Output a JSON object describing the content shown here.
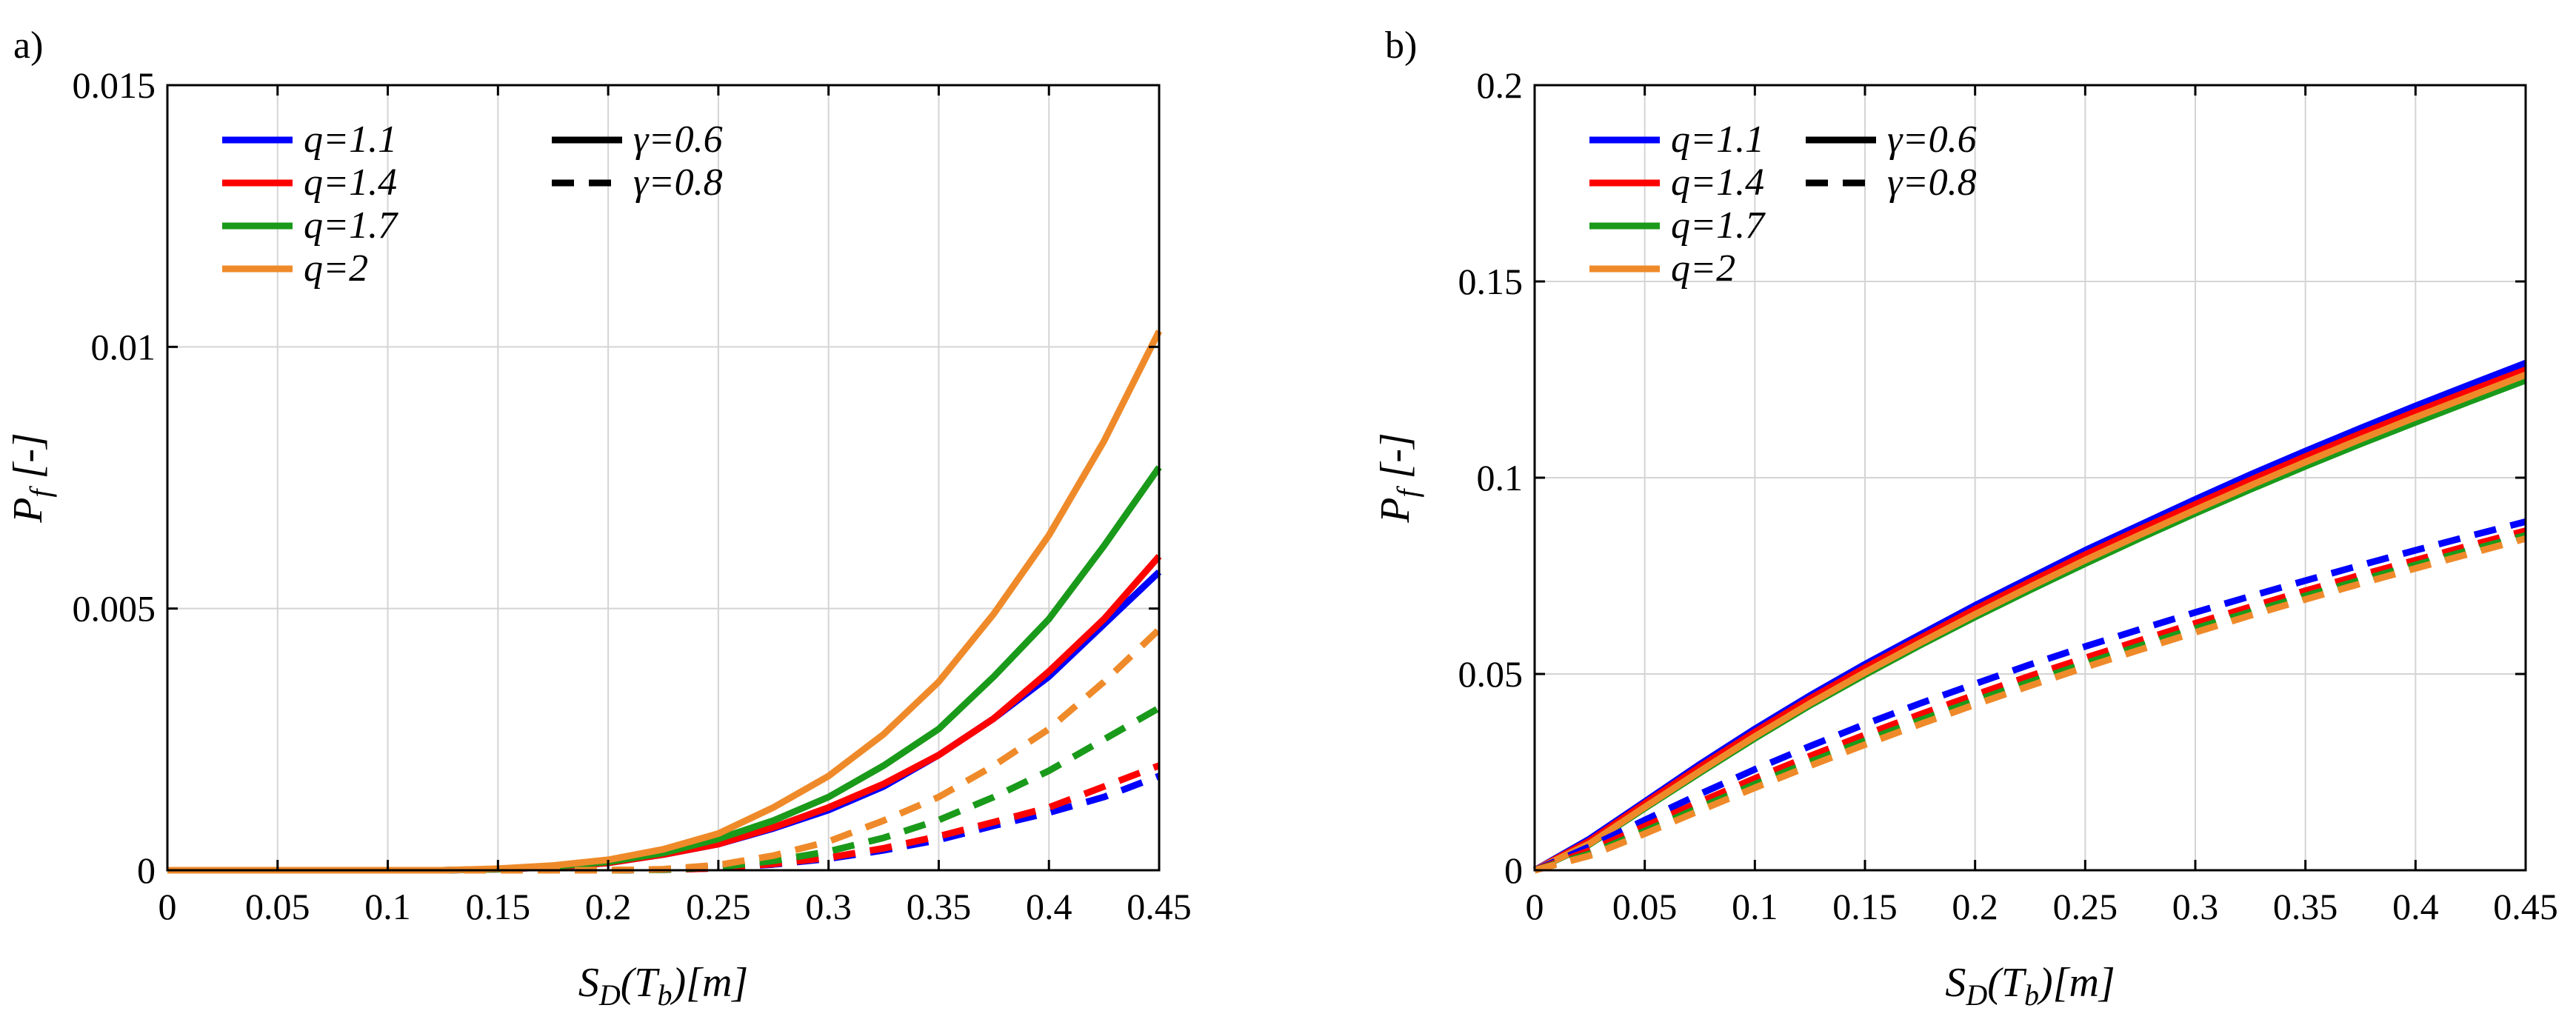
{
  "chart_data": [
    {
      "type": "line",
      "panel_label": "a)",
      "xlabel": "S_D(T_b)[m]",
      "ylabel": "P_f [-]",
      "xlabel_parts": {
        "main": "S",
        "sub1": "D",
        "mid": "(T",
        "sub2": "b",
        "end": ")[m]"
      },
      "ylabel_parts": {
        "main": "P",
        "sub": "f",
        "end": " [-]"
      },
      "xlim": [
        0,
        0.45
      ],
      "ylim": [
        0,
        0.015
      ],
      "grid": true,
      "xticks": [
        0,
        0.05,
        0.1,
        0.15,
        0.2,
        0.25,
        0.3,
        0.35,
        0.4,
        0.45
      ],
      "xtick_labels": [
        "0",
        "0.05",
        "0.1",
        "0.15",
        "0.2",
        "0.25",
        "0.3",
        "0.35",
        "0.4",
        "0.45"
      ],
      "yticks": [
        0,
        0.005,
        0.01,
        0.015
      ],
      "ytick_labels": [
        "0",
        "0.005",
        "0.01",
        "0.015"
      ],
      "legend_position": "top-left",
      "legend_colors": [
        {
          "label": "q=1.1",
          "color": "#0000ff"
        },
        {
          "label": "q=1.4",
          "color": "#ff0000"
        },
        {
          "label": "q=1.7",
          "color": "#1a9a1a"
        },
        {
          "label": "q=2",
          "color": "#ef8a2a"
        }
      ],
      "legend_styles": [
        {
          "label": "γ=0.6",
          "dash": "solid"
        },
        {
          "label": "γ=0.8",
          "dash": "dashed"
        }
      ],
      "x": [
        0,
        0.025,
        0.05,
        0.075,
        0.1,
        0.125,
        0.15,
        0.175,
        0.2,
        0.225,
        0.25,
        0.275,
        0.3,
        0.325,
        0.35,
        0.375,
        0.4,
        0.425,
        0.45
      ],
      "series": [
        {
          "name": "q=1.1, γ=0.6",
          "color": "#0000ff",
          "dash": "solid",
          "values": [
            0,
            0,
            0,
            0,
            0,
            0,
            2e-05,
            6e-05,
            0.00014,
            0.0003,
            0.0005,
            0.0008,
            0.00115,
            0.0016,
            0.0022,
            0.0029,
            0.0037,
            0.0047,
            0.0057
          ]
        },
        {
          "name": "q=1.4, γ=0.6",
          "color": "#ff0000",
          "dash": "solid",
          "values": [
            0,
            0,
            0,
            0,
            0,
            0,
            2e-05,
            6e-05,
            0.00014,
            0.0003,
            0.0005,
            0.00082,
            0.0012,
            0.00165,
            0.0022,
            0.0029,
            0.0038,
            0.0048,
            0.006
          ]
        },
        {
          "name": "q=1.7, γ=0.6",
          "color": "#1a9a1a",
          "dash": "solid",
          "values": [
            0,
            0,
            0,
            0,
            0,
            0,
            2e-05,
            7e-05,
            0.00016,
            0.00033,
            0.0006,
            0.00095,
            0.0014,
            0.002,
            0.0027,
            0.0037,
            0.0048,
            0.0062,
            0.0077
          ]
        },
        {
          "name": "q=2, γ=0.6",
          "color": "#ef8a2a",
          "dash": "solid",
          "values": [
            0,
            0,
            0,
            0,
            0,
            0,
            3e-05,
            9e-05,
            0.0002,
            0.0004,
            0.0007,
            0.0012,
            0.0018,
            0.0026,
            0.0036,
            0.0049,
            0.0064,
            0.0082,
            0.0103
          ]
        },
        {
          "name": "q=1.1, γ=0.8",
          "color": "#0000ff",
          "dash": "dashed",
          "values": [
            0,
            0,
            0,
            0,
            0,
            0,
            0,
            0,
            0,
            1e-05,
            4e-05,
            0.00011,
            0.00022,
            0.00038,
            0.00058,
            0.00085,
            0.0011,
            0.0014,
            0.0018
          ]
        },
        {
          "name": "q=1.4, γ=0.8",
          "color": "#ff0000",
          "dash": "dashed",
          "values": [
            0,
            0,
            0,
            0,
            0,
            0,
            0,
            0,
            0,
            1e-05,
            4e-05,
            0.00012,
            0.00024,
            0.00042,
            0.00065,
            0.00092,
            0.0012,
            0.0016,
            0.002
          ]
        },
        {
          "name": "q=1.7, γ=0.8",
          "color": "#1a9a1a",
          "dash": "dashed",
          "values": [
            0,
            0,
            0,
            0,
            0,
            0,
            0,
            0,
            0,
            1e-05,
            6e-05,
            0.00018,
            0.00036,
            0.00062,
            0.00096,
            0.0014,
            0.0019,
            0.0025,
            0.0031
          ]
        },
        {
          "name": "q=2, γ=0.8",
          "color": "#ef8a2a",
          "dash": "dashed",
          "values": [
            0,
            0,
            0,
            0,
            0,
            0,
            0,
            0,
            0,
            2e-05,
            0.0001,
            0.00028,
            0.00055,
            0.00095,
            0.0014,
            0.002,
            0.0027,
            0.0036,
            0.0046
          ]
        }
      ]
    },
    {
      "type": "line",
      "panel_label": "b)",
      "xlabel": "S_D(T_b)[m]",
      "ylabel": "P_f [-]",
      "xlabel_parts": {
        "main": "S",
        "sub1": "D",
        "mid": "(T",
        "sub2": "b",
        "end": ")[m]"
      },
      "ylabel_parts": {
        "main": "P",
        "sub": "f",
        "end": " [-]"
      },
      "xlim": [
        0,
        0.45
      ],
      "ylim": [
        0,
        0.2
      ],
      "grid": true,
      "xticks": [
        0,
        0.05,
        0.1,
        0.15,
        0.2,
        0.25,
        0.3,
        0.35,
        0.4,
        0.45
      ],
      "xtick_labels": [
        "0",
        "0.05",
        "0.1",
        "0.15",
        "0.2",
        "0.25",
        "0.3",
        "0.35",
        "0.4",
        "0.45"
      ],
      "yticks": [
        0,
        0.05,
        0.1,
        0.15,
        0.2
      ],
      "ytick_labels": [
        "0",
        "0.05",
        "0.1",
        "0.15",
        "0.2"
      ],
      "legend_position": "top-left",
      "legend_colors": [
        {
          "label": "q=1.1",
          "color": "#0000ff"
        },
        {
          "label": "q=1.4",
          "color": "#ff0000"
        },
        {
          "label": "q=1.7",
          "color": "#1a9a1a"
        },
        {
          "label": "q=2",
          "color": "#ef8a2a"
        }
      ],
      "legend_styles": [
        {
          "label": "γ=0.6",
          "dash": "solid"
        },
        {
          "label": "γ=0.8",
          "dash": "dashed"
        }
      ],
      "x": [
        0,
        0.025,
        0.05,
        0.075,
        0.1,
        0.125,
        0.15,
        0.175,
        0.2,
        0.225,
        0.25,
        0.275,
        0.3,
        0.325,
        0.35,
        0.375,
        0.4,
        0.425,
        0.45
      ],
      "series": [
        {
          "name": "q=1.1, γ=0.6",
          "color": "#0000ff",
          "dash": "solid",
          "values": [
            0,
            0.008,
            0.0175,
            0.027,
            0.036,
            0.0445,
            0.0525,
            0.06,
            0.0675,
            0.0745,
            0.0815,
            0.088,
            0.0945,
            0.1008,
            0.1068,
            0.1126,
            0.1183,
            0.1238,
            0.1292
          ]
        },
        {
          "name": "q=1.4, γ=0.6",
          "color": "#ff0000",
          "dash": "solid",
          "values": [
            0,
            0.0075,
            0.017,
            0.0263,
            0.0352,
            0.0437,
            0.0516,
            0.0591,
            0.0665,
            0.0735,
            0.0804,
            0.0869,
            0.0932,
            0.0994,
            0.1054,
            0.1112,
            0.1168,
            0.1222,
            0.1275
          ]
        },
        {
          "name": "q=1.7, γ=0.6",
          "color": "#1a9a1a",
          "dash": "solid",
          "values": [
            0,
            0.0066,
            0.0158,
            0.0248,
            0.0336,
            0.042,
            0.0498,
            0.0573,
            0.0645,
            0.0714,
            0.0781,
            0.0846,
            0.0909,
            0.097,
            0.1029,
            0.1086,
            0.1141,
            0.1195,
            0.1248
          ]
        },
        {
          "name": "q=2, γ=0.6",
          "color": "#ef8a2a",
          "dash": "solid",
          "values": [
            0,
            0.0068,
            0.0161,
            0.0252,
            0.0341,
            0.0425,
            0.0504,
            0.0579,
            0.0652,
            0.0722,
            0.079,
            0.0855,
            0.0918,
            0.098,
            0.104,
            0.1098,
            0.1154,
            0.1208,
            0.1262
          ]
        },
        {
          "name": "q=1.1, γ=0.8",
          "color": "#0000ff",
          "dash": "dashed",
          "values": [
            0,
            0.006,
            0.0128,
            0.0194,
            0.0257,
            0.0316,
            0.0372,
            0.0425,
            0.0475,
            0.0524,
            0.057,
            0.0614,
            0.0657,
            0.0698,
            0.0738,
            0.0777,
            0.0815,
            0.0852,
            0.0888
          ]
        },
        {
          "name": "q=1.4, γ=0.8",
          "color": "#ff0000",
          "dash": "dashed",
          "values": [
            0,
            0.005,
            0.0112,
            0.0174,
            0.0234,
            0.0291,
            0.0345,
            0.0397,
            0.0447,
            0.0495,
            0.0541,
            0.0586,
            0.0629,
            0.0671,
            0.0712,
            0.0752,
            0.079,
            0.0828,
            0.0865
          ]
        },
        {
          "name": "q=1.7, γ=0.8",
          "color": "#1a9a1a",
          "dash": "dashed",
          "values": [
            0,
            0.0042,
            0.01,
            0.016,
            0.0219,
            0.0276,
            0.033,
            0.0382,
            0.0432,
            0.048,
            0.0527,
            0.0572,
            0.0616,
            0.0658,
            0.0699,
            0.0739,
            0.0778,
            0.0816,
            0.0853
          ]
        },
        {
          "name": "q=2, γ=0.8",
          "color": "#ef8a2a",
          "dash": "dashed",
          "values": [
            0,
            0.0037,
            0.0093,
            0.0152,
            0.021,
            0.0266,
            0.032,
            0.0372,
            0.0422,
            0.047,
            0.0517,
            0.0562,
            0.0606,
            0.0649,
            0.069,
            0.073,
            0.0769,
            0.0807,
            0.0845
          ]
        }
      ]
    }
  ]
}
